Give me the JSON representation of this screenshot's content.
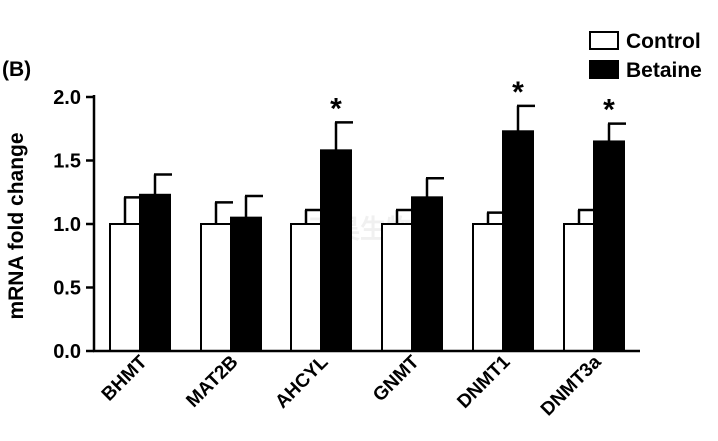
{
  "chart_data": {
    "type": "bar",
    "panel_label": "(B)",
    "ylabel": "mRNA fold change",
    "xlabel": "",
    "ylim": [
      0,
      2.0
    ],
    "yticks": [
      "0.0",
      "0.5",
      "1.0",
      "1.5",
      "2.0"
    ],
    "categories": [
      "BHMT",
      "MAT2B",
      "AHCYL",
      "GNMT",
      "DNMT1",
      "DNMT3a"
    ],
    "series": [
      {
        "name": "Control",
        "color": "#ffffff",
        "values": [
          1.0,
          1.0,
          1.0,
          1.0,
          1.0,
          1.0
        ],
        "errors": [
          0.21,
          0.17,
          0.11,
          0.11,
          0.09,
          0.11
        ]
      },
      {
        "name": "Betaine",
        "color": "#000000",
        "values": [
          1.23,
          1.05,
          1.58,
          1.21,
          1.73,
          1.65
        ],
        "errors": [
          0.16,
          0.17,
          0.22,
          0.15,
          0.2,
          0.14
        ]
      }
    ],
    "significance": [
      "",
      "",
      "*",
      "",
      "*",
      "*"
    ],
    "legend_position": "top-right",
    "grid": false
  },
  "watermark": "GENEFOLOGY 天昊生物"
}
